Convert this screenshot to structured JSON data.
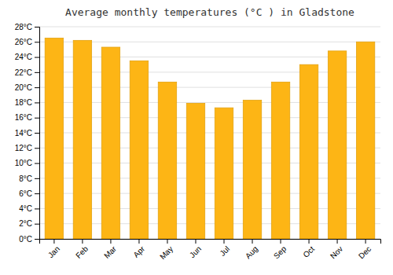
{
  "chart_data": {
    "type": "bar",
    "title": "Average monthly temperatures (°C ) in Gladstone",
    "categories": [
      "Jan",
      "Feb",
      "Mar",
      "Apr",
      "May",
      "Jun",
      "Jul",
      "Aug",
      "Sep",
      "Oct",
      "Nov",
      "Dec"
    ],
    "values": [
      26.5,
      26.2,
      25.3,
      23.5,
      20.7,
      17.9,
      17.3,
      18.3,
      20.7,
      23.0,
      24.8,
      26.0
    ],
    "color": "#FDB515",
    "ylim": [
      0,
      28
    ],
    "yticks": [
      {
        "value": 0,
        "label": "0°C"
      },
      {
        "value": 2,
        "label": "2°C"
      },
      {
        "value": 4,
        "label": "4°C"
      },
      {
        "value": 6,
        "label": "6°C"
      },
      {
        "value": 8,
        "label": "8°C"
      },
      {
        "value": 10,
        "label": "10°C"
      },
      {
        "value": 12,
        "label": "12°C"
      },
      {
        "value": 14,
        "label": "14°C"
      },
      {
        "value": 16,
        "label": "16°C"
      },
      {
        "value": 18,
        "label": "18°C"
      },
      {
        "value": 20,
        "label": "20°C"
      },
      {
        "value": 22,
        "label": "22°C"
      },
      {
        "value": 24,
        "label": "24°C"
      },
      {
        "value": 26,
        "label": "26°C"
      },
      {
        "value": 28,
        "label": "28°C"
      }
    ],
    "grid": true
  }
}
